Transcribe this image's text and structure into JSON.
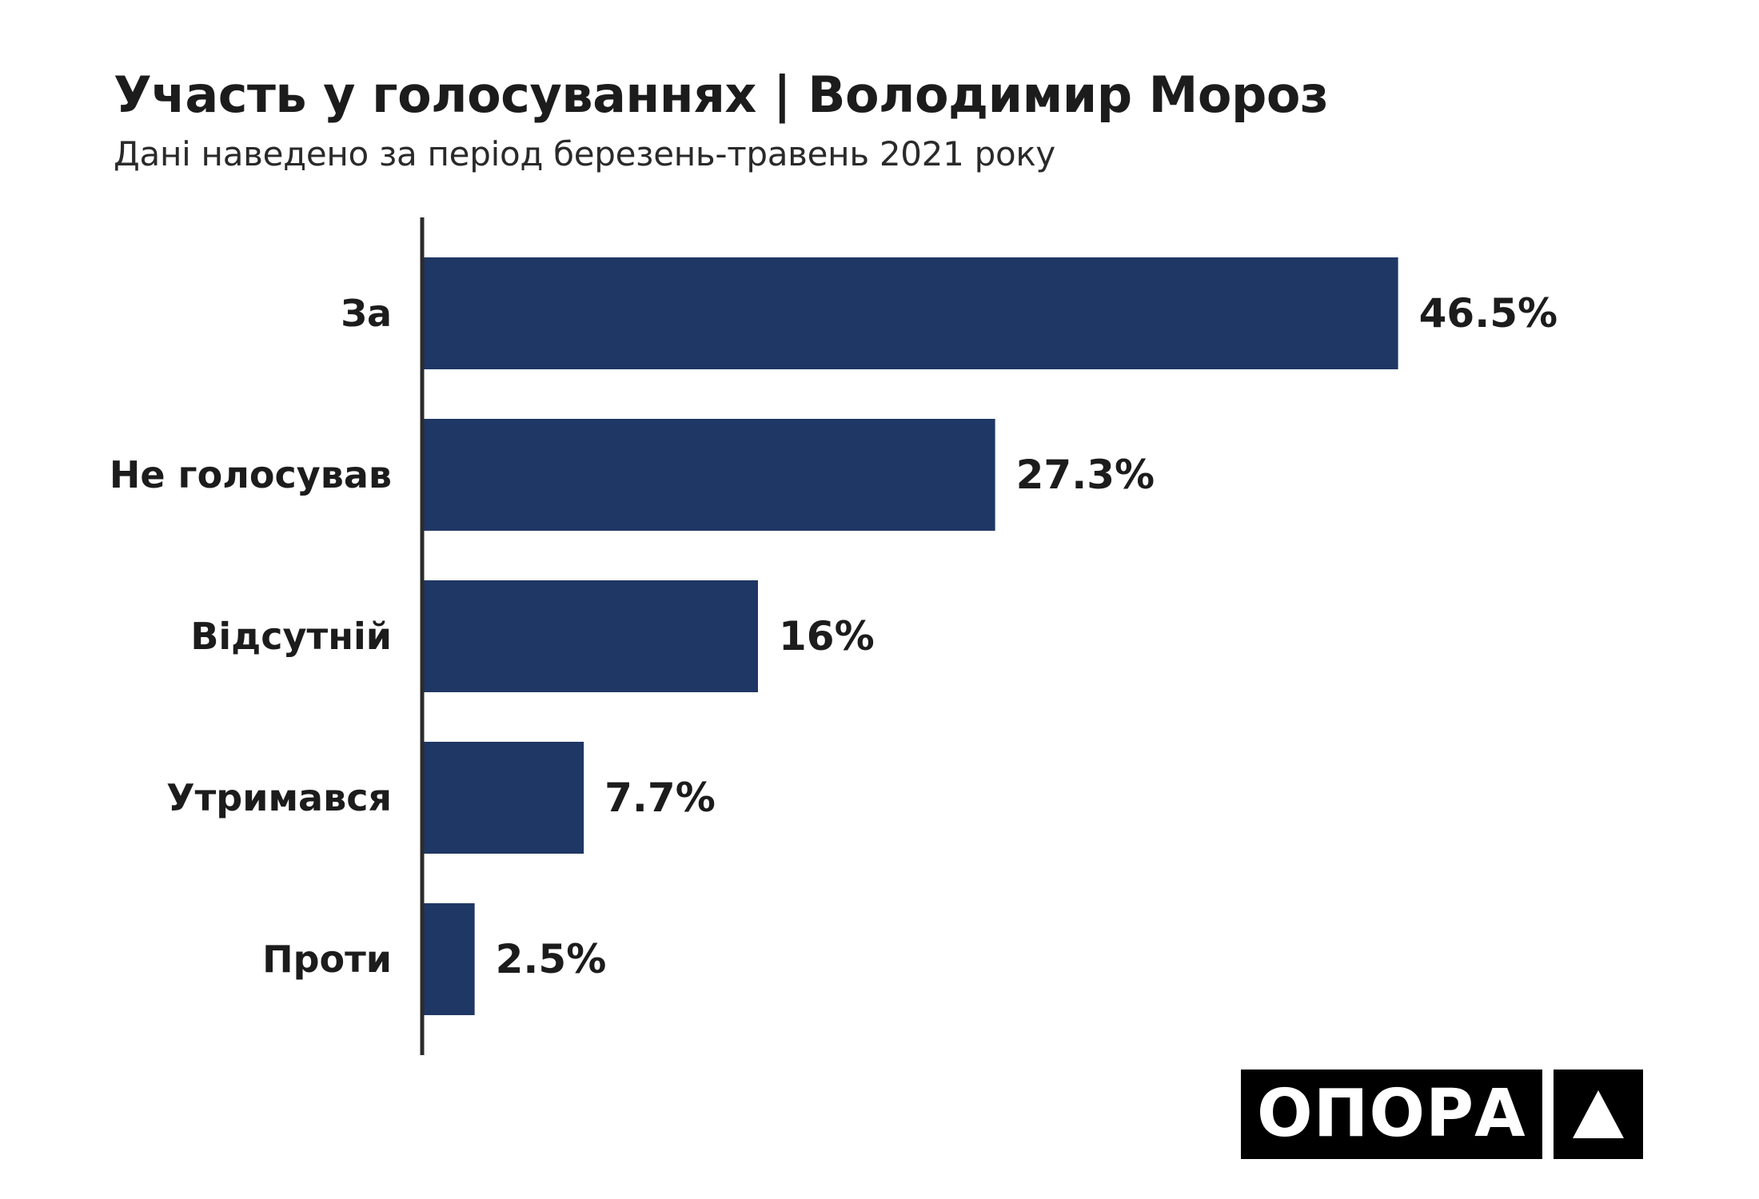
{
  "header": {
    "title": "Участь у голосуваннях | Володимир Мороз",
    "subtitle": "Дані наведено за період березень-травень 2021 року"
  },
  "chart_data": {
    "type": "bar",
    "orientation": "horizontal",
    "title": "Участь у голосуваннях | Володимир Мороз",
    "subtitle": "Дані наведено за період березень-травень 2021 року",
    "categories": [
      "За",
      "Не голосував",
      "Відсутній",
      "Утримався",
      "Проти"
    ],
    "values": [
      46.5,
      27.3,
      16,
      7.7,
      2.5
    ],
    "value_labels": [
      "46.5%",
      "27.3%",
      "16%",
      "7.7%",
      "2.5%"
    ],
    "unit": "%",
    "xlim": [
      0,
      50
    ],
    "grid": false,
    "legend": "none",
    "bar_color": "#1f3764"
  },
  "logo": {
    "word": "ОПОРА",
    "mark": "triangle-icon"
  }
}
